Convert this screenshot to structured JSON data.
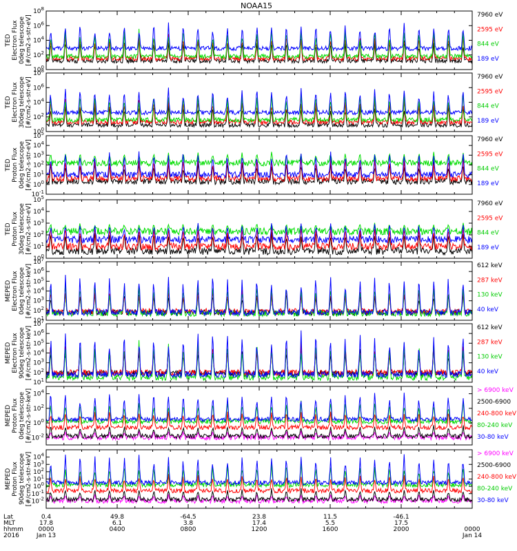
{
  "title": "NOAA15",
  "chart_data": {
    "type": "line",
    "panels": [
      {
        "id": "ted-e-0",
        "ylabel": [
          "TED",
          "Electron Flux",
          "0deg telescope",
          "[#/cm2-s-str-eV]"
        ],
        "yticks": [
          {
            "e": 0
          },
          {
            "e": 2
          },
          {
            "e": 4
          },
          {
            "e": 6
          },
          {
            "e": 8
          }
        ],
        "ylog": [
          0,
          8
        ],
        "series": [
          {
            "name": "7960 eV",
            "color": "#000000",
            "base": 1.2,
            "amp": 3.2
          },
          {
            "name": "2595 eV",
            "color": "#ff0000",
            "base": 1.5,
            "amp": 3.5
          },
          {
            "name": "844 eV",
            "color": "#00dd00",
            "base": 1.8,
            "amp": 4.0
          },
          {
            "name": "189 eV",
            "color": "#0000ff",
            "base": 2.9,
            "amp": 3.6
          }
        ]
      },
      {
        "id": "ted-e-30",
        "ylabel": [
          "TED",
          "Electron Flux",
          "30deg telescope",
          "[#/cm2-s-str-eV]"
        ],
        "yticks": [
          {
            "e": 0
          },
          {
            "e": 2
          },
          {
            "e": 4
          },
          {
            "e": 6
          },
          {
            "e": 8
          }
        ],
        "ylog": [
          0,
          8
        ],
        "series": [
          {
            "name": "7960 eV",
            "color": "#000000",
            "base": 0.9,
            "amp": 3.0
          },
          {
            "name": "2595 eV",
            "color": "#ff0000",
            "base": 1.3,
            "amp": 3.3
          },
          {
            "name": "844 eV",
            "color": "#00dd00",
            "base": 1.6,
            "amp": 3.9
          },
          {
            "name": "189 eV",
            "color": "#0000ff",
            "base": 2.6,
            "amp": 3.5
          }
        ]
      },
      {
        "id": "ted-p-0",
        "ylabel": [
          "TED",
          "Proton Flux",
          "0deg telescope",
          "[#/cm2-s-str-eV]"
        ],
        "yticks": [
          {
            "e": -1
          },
          {
            "e": 0
          },
          {
            "e": 1
          },
          {
            "e": 2
          },
          {
            "e": 3
          },
          {
            "e": 4
          },
          {
            "e": 5
          }
        ],
        "ylog": [
          -1,
          5
        ],
        "series": [
          {
            "name": "7960 eV",
            "color": "#000000",
            "base": 0.3,
            "amp": 2.2
          },
          {
            "name": "2595 eV",
            "color": "#ff0000",
            "base": 0.6,
            "amp": 2.3
          },
          {
            "name": "844 eV",
            "color": "#00dd00",
            "base": 2.2,
            "amp": 1.2
          },
          {
            "name": "189 eV",
            "color": "#0000ff",
            "base": 1.0,
            "amp": 2.6
          }
        ]
      },
      {
        "id": "ted-p-30",
        "ylabel": [
          "TED",
          "Proton Flux",
          "30deg telescope",
          "[#/cm2-s-str-eV]"
        ],
        "yticks": [
          {
            "e": 0
          },
          {
            "e": 1
          },
          {
            "e": 2
          },
          {
            "e": 3
          },
          {
            "e": 4
          },
          {
            "e": 5
          }
        ],
        "ylog": [
          0,
          5
        ],
        "series": [
          {
            "name": "7960 eV",
            "color": "#000000",
            "base": 0.6,
            "amp": 1.8
          },
          {
            "name": "2595 eV",
            "color": "#ff0000",
            "base": 1.0,
            "amp": 1.9
          },
          {
            "name": "844 eV",
            "color": "#00dd00",
            "base": 2.3,
            "amp": 0.8
          },
          {
            "name": "189 eV",
            "color": "#0000ff",
            "base": 1.6,
            "amp": 1.5
          }
        ]
      },
      {
        "id": "meped-e-0",
        "ylabel": [
          "MEPED",
          "Electron Flux",
          "0deg telescope",
          "[#/cm2-s-str-keV]"
        ],
        "yticks": [
          {
            "e": 1
          },
          {
            "e": 2
          },
          {
            "e": 3
          },
          {
            "e": 4
          },
          {
            "e": 5
          },
          {
            "e": 6
          },
          {
            "e": 7
          }
        ],
        "ylog": [
          1,
          7
        ],
        "series": [
          {
            "name": "612 keV",
            "color": "#000000",
            "base": 1.8,
            "amp": 2.2
          },
          {
            "name": "287 keV",
            "color": "#ff0000",
            "base": 1.9,
            "amp": 2.5
          },
          {
            "name": "130 keV",
            "color": "#00dd00",
            "base": 1.7,
            "amp": 3.3
          },
          {
            "name": "40 keV",
            "color": "#0000ff",
            "base": 1.8,
            "amp": 4.2
          }
        ]
      },
      {
        "id": "meped-e-90",
        "ylabel": [
          "MEPED",
          "Electron Flux",
          "90deg telescope",
          "[#/cm2-s-str-keV]"
        ],
        "yticks": [
          {
            "e": 1
          },
          {
            "e": 2
          },
          {
            "e": 3
          },
          {
            "e": 4
          },
          {
            "e": 5
          },
          {
            "e": 6
          },
          {
            "e": 7
          }
        ],
        "ylog": [
          1,
          7
        ],
        "series": [
          {
            "name": "612 keV",
            "color": "#000000",
            "base": 1.9,
            "amp": 3.0
          },
          {
            "name": "287 keV",
            "color": "#ff0000",
            "base": 2.0,
            "amp": 3.2
          },
          {
            "name": "130 keV",
            "color": "#00dd00",
            "base": 1.5,
            "amp": 4.0
          },
          {
            "name": "40 keV",
            "color": "#0000ff",
            "base": 1.8,
            "amp": 4.6
          }
        ]
      },
      {
        "id": "meped-p-0",
        "ylabel": [
          "MEPED",
          "Proton Flux",
          "0deg telescope",
          "[#/cm2-s-str-keV]"
        ],
        "yticks": [
          {
            "e": -2
          },
          {
            "e": 0
          },
          {
            "e": 2
          },
          {
            "e": 4
          }
        ],
        "ylog": [
          -3,
          5
        ],
        "series": [
          {
            "name": "> 6900 keV",
            "color": "#ff00ff",
            "base": -2.0,
            "amp": 1.0
          },
          {
            "name": "2500-6900",
            "color": "#000000",
            "base": -1.8,
            "amp": 1.6
          },
          {
            "name": "240-800 keV",
            "color": "#ff0000",
            "base": -0.6,
            "amp": 2.4
          },
          {
            "name": "80-240 keV",
            "color": "#00dd00",
            "base": 0.2,
            "amp": 3.0
          },
          {
            "name": "30-80 keV",
            "color": "#0000ff",
            "base": 0.5,
            "amp": 4.0
          }
        ]
      },
      {
        "id": "meped-p-90",
        "ylabel": [
          "MEPED",
          "Proton Flux",
          "90deg telescope",
          "[#/cm2-s-str-keV]"
        ],
        "yticks": [
          {
            "e": -2
          },
          {
            "e": -1
          },
          {
            "e": 0
          },
          {
            "e": 1
          },
          {
            "e": 2
          },
          {
            "e": 3
          },
          {
            "e": 4
          }
        ],
        "ylog": [
          -3,
          5
        ],
        "series": [
          {
            "name": "> 6900 keV",
            "color": "#ff00ff",
            "base": -2.0,
            "amp": 1.0
          },
          {
            "name": "2500-6900",
            "color": "#000000",
            "base": -1.8,
            "amp": 1.6
          },
          {
            "name": "240-800 keV",
            "color": "#ff0000",
            "base": -0.6,
            "amp": 2.4
          },
          {
            "name": "80-240 keV",
            "color": "#00dd00",
            "base": 0.2,
            "amp": 3.0
          },
          {
            "name": "30-80 keV",
            "color": "#0000ff",
            "base": 0.5,
            "amp": 4.0
          }
        ]
      }
    ],
    "x_axis": {
      "row_labels": [
        "Lat",
        "MLT",
        "hhmm",
        "2016"
      ],
      "ticks": [
        {
          "values": [
            "0.4",
            "17.8",
            "0000",
            "Jan 13"
          ],
          "hour": 0
        },
        {
          "values": [
            "49.8",
            "6.1",
            "0400",
            ""
          ],
          "hour": 4
        },
        {
          "values": [
            "-64.5",
            "3.8",
            "0800",
            ""
          ],
          "hour": 8
        },
        {
          "values": [
            "23.8",
            "17.4",
            "1200",
            ""
          ],
          "hour": 12
        },
        {
          "values": [
            "11.5",
            "5.5",
            "1600",
            ""
          ],
          "hour": 16
        },
        {
          "values": [
            "-46.1",
            "17.5",
            "2000",
            ""
          ],
          "hour": 20
        },
        {
          "values": [
            "",
            "",
            "0000",
            "Jan 14"
          ],
          "hour": 24
        }
      ],
      "range_hours": [
        0,
        24
      ]
    }
  }
}
